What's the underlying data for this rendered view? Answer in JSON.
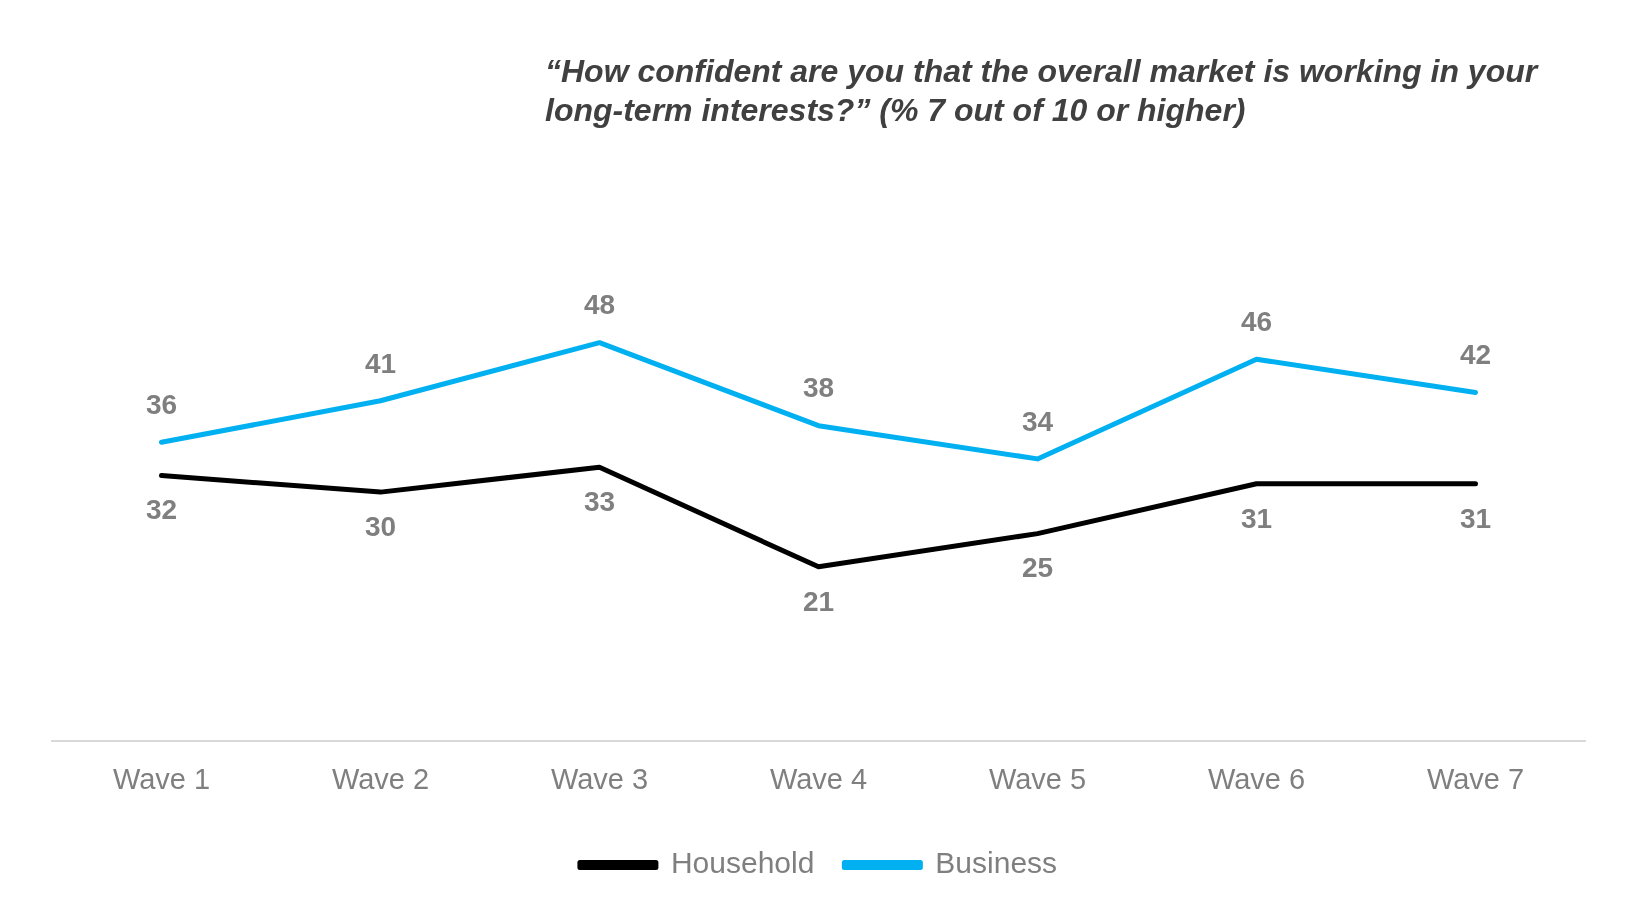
{
  "chart_data": {
    "type": "line",
    "title": "“How confident are you that the overall market is working in your long-term interests?” (% 7 out of 10 or higher)",
    "categories": [
      "Wave 1",
      "Wave 2",
      "Wave 3",
      "Wave 4",
      "Wave 5",
      "Wave 6",
      "Wave 7"
    ],
    "series": [
      {
        "name": "Household",
        "color": "#000000",
        "values": [
          32,
          30,
          33,
          21,
          25,
          31,
          31
        ]
      },
      {
        "name": "Business",
        "color": "#00b0f0",
        "values": [
          36,
          41,
          48,
          38,
          34,
          46,
          42
        ]
      }
    ],
    "tick_labels": "x",
    "data_labels": true,
    "grid": false,
    "legend": "bottom",
    "marker": "none",
    "line_style": "solid"
  }
}
